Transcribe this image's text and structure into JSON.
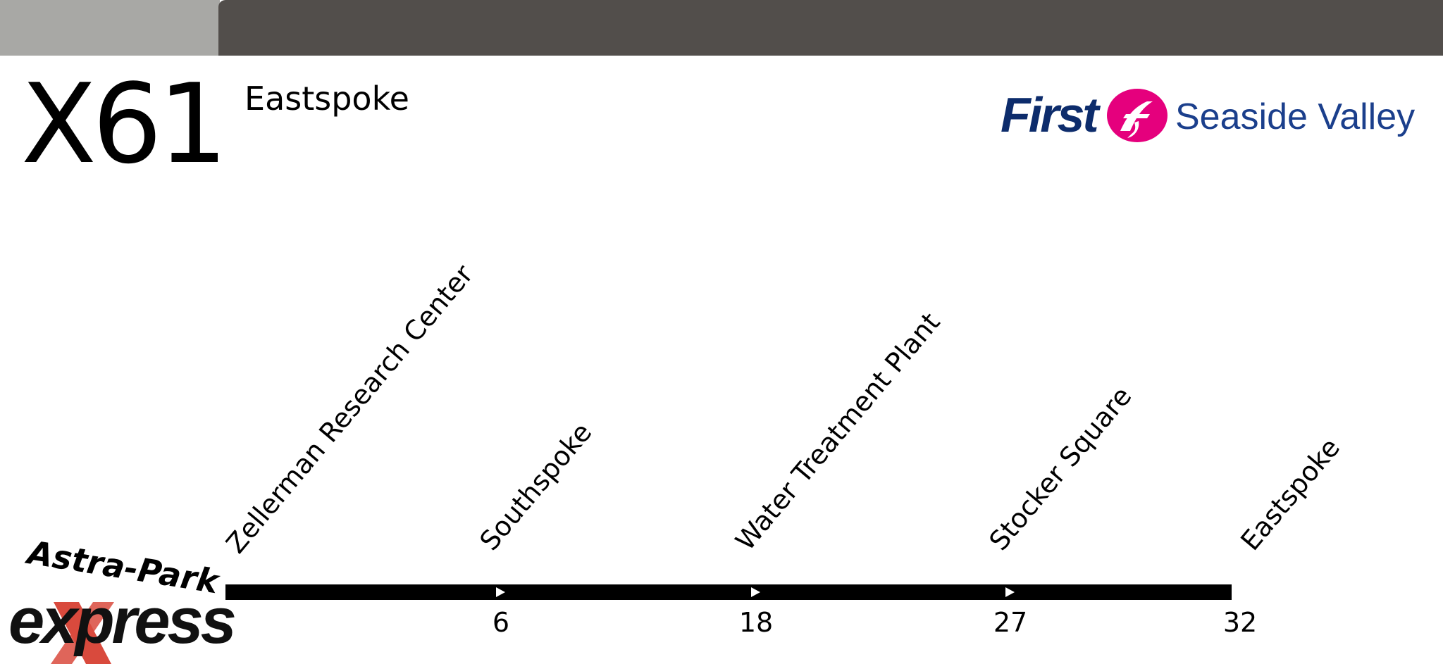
{
  "header": {
    "route_number": "X61",
    "destination": "Eastspoke"
  },
  "operator": {
    "name": "First",
    "region": "Seaside Valley",
    "colors": {
      "navy": "#0d2c6c",
      "magenta": "#e5007d"
    },
    "logo_icon": "first-f-logo"
  },
  "brand": {
    "line1": "Astra-Park",
    "line2": "express",
    "accent_color": "#d94a3d"
  },
  "stops": [
    {
      "name": "Zellerman Research Center",
      "time": ""
    },
    {
      "name": "Southspoke",
      "time": "6"
    },
    {
      "name": "Water Treatment Plant",
      "time": "18"
    },
    {
      "name": "Stocker Square",
      "time": "27"
    },
    {
      "name": "Eastspoke",
      "time": "32"
    }
  ]
}
